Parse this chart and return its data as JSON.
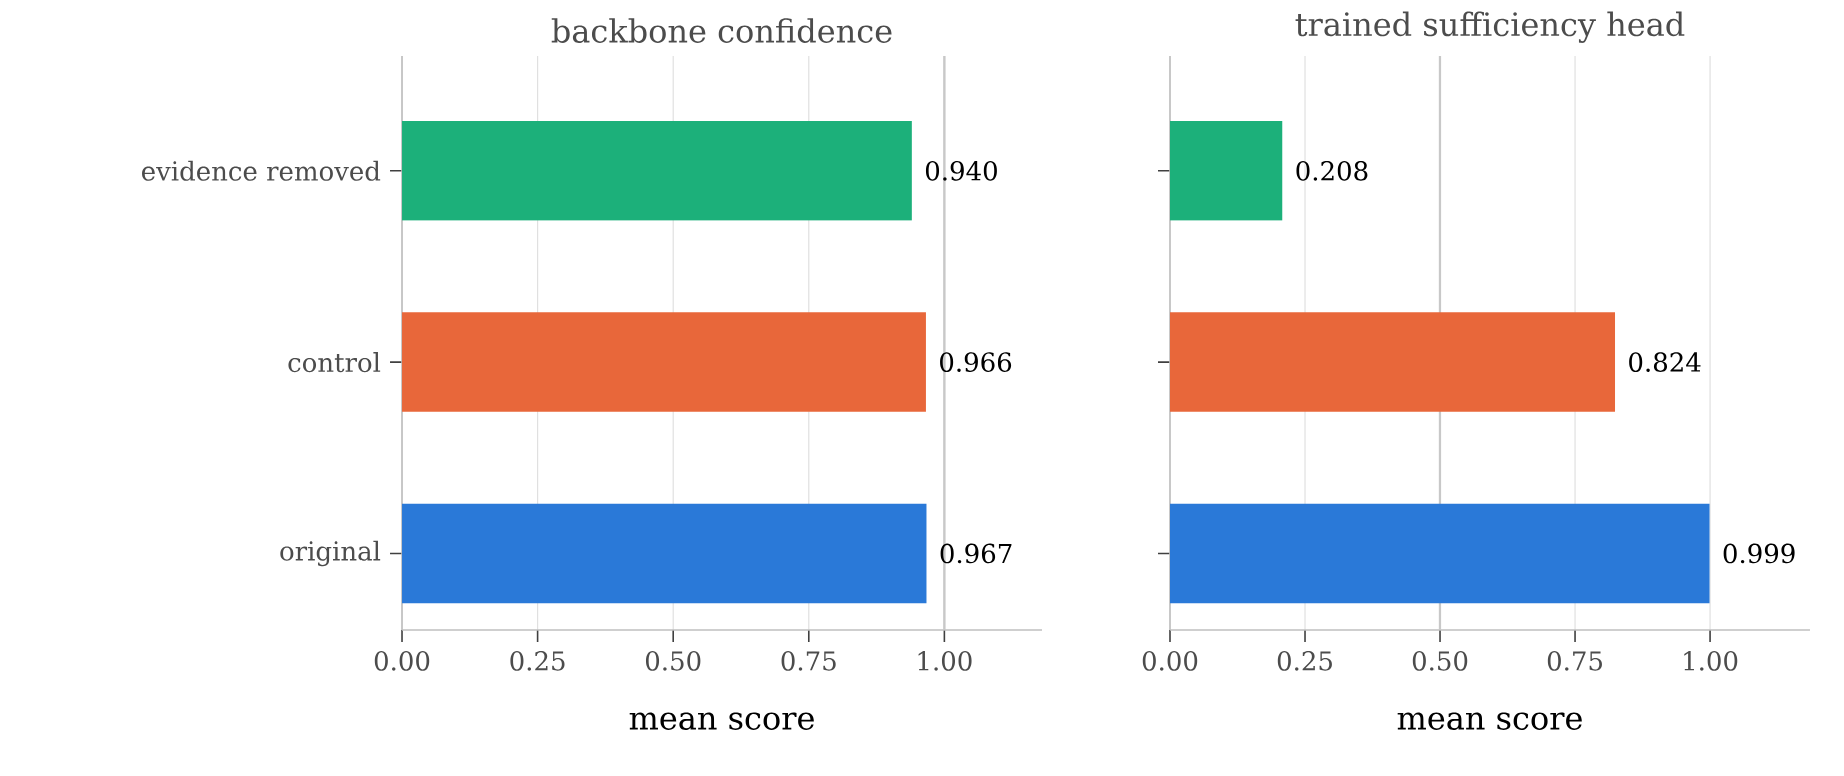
{
  "chart_data": [
    {
      "type": "bar",
      "orientation": "horizontal",
      "title": "backbone confidence",
      "xlabel": "mean score",
      "categories": [
        "evidence removed",
        "control",
        "original"
      ],
      "values": [
        0.94,
        0.966,
        0.967
      ],
      "colors": [
        "#1cb07a",
        "#e8673a",
        "#2a79d8"
      ],
      "value_labels": [
        "0.940",
        "0.966",
        "0.967"
      ],
      "xlim": [
        0,
        1.18
      ],
      "xticks": [
        {
          "value": 0,
          "label": "0.00"
        },
        {
          "value": 0.25,
          "label": "0.25"
        },
        {
          "value": 0.5,
          "label": "0.50"
        },
        {
          "value": 0.75,
          "label": "0.75"
        },
        {
          "value": 1,
          "label": "1.00"
        }
      ],
      "grid": "x",
      "ref_lines": [
        {
          "axis": "x",
          "value": 1,
          "color": "#c8c8c8"
        }
      ]
    },
    {
      "type": "bar",
      "orientation": "horizontal",
      "title": "trained sufficiency head",
      "xlabel": "mean score",
      "categories": [
        null,
        null,
        null
      ],
      "values": [
        0.208,
        0.824,
        0.999
      ],
      "colors": [
        "#1cb07a",
        "#e8673a",
        "#2a79d8"
      ],
      "value_labels": [
        "0.208",
        "0.824",
        "0.999"
      ],
      "xlim": [
        0,
        1.185
      ],
      "xticks": [
        {
          "value": 0,
          "label": "0.00"
        },
        {
          "value": 0.25,
          "label": "0.25"
        },
        {
          "value": 0.5,
          "label": "0.50"
        },
        {
          "value": 0.75,
          "label": "0.75"
        },
        {
          "value": 1,
          "label": "1.00"
        }
      ],
      "grid": "x",
      "tick_labels": "x",
      "ref_lines": [
        {
          "axis": "x",
          "value": 0.5,
          "color": "#c8c8c8"
        }
      ]
    }
  ]
}
